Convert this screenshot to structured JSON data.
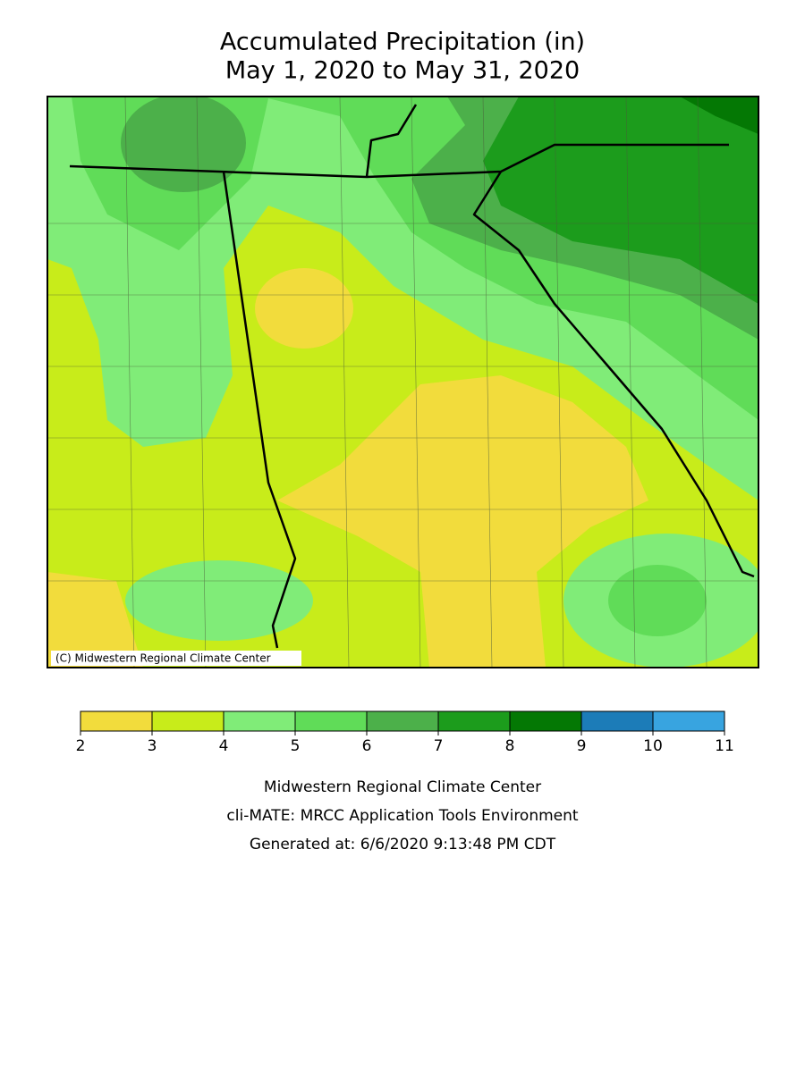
{
  "title": [
    "Accumulated Precipitation (in)",
    "May 1, 2020 to May 31, 2020"
  ],
  "map": {
    "copyright": "(C) Midwestern Regional Climate Center"
  },
  "legend": {
    "ticks": [
      2,
      3,
      4,
      5,
      6,
      7,
      8,
      9,
      10,
      11
    ],
    "colors": [
      "#f2dc3c",
      "#c8ec1a",
      "#80ec78",
      "#60dc58",
      "#4cb04a",
      "#1c9c1c",
      "#047804",
      "#1c7cb8",
      "#38a4e0"
    ]
  },
  "footer": [
    "Midwestern Regional Climate Center",
    "cli-MATE: MRCC Application Tools Environment",
    "Generated at: 6/6/2020 9:13:48 PM CDT"
  ]
}
